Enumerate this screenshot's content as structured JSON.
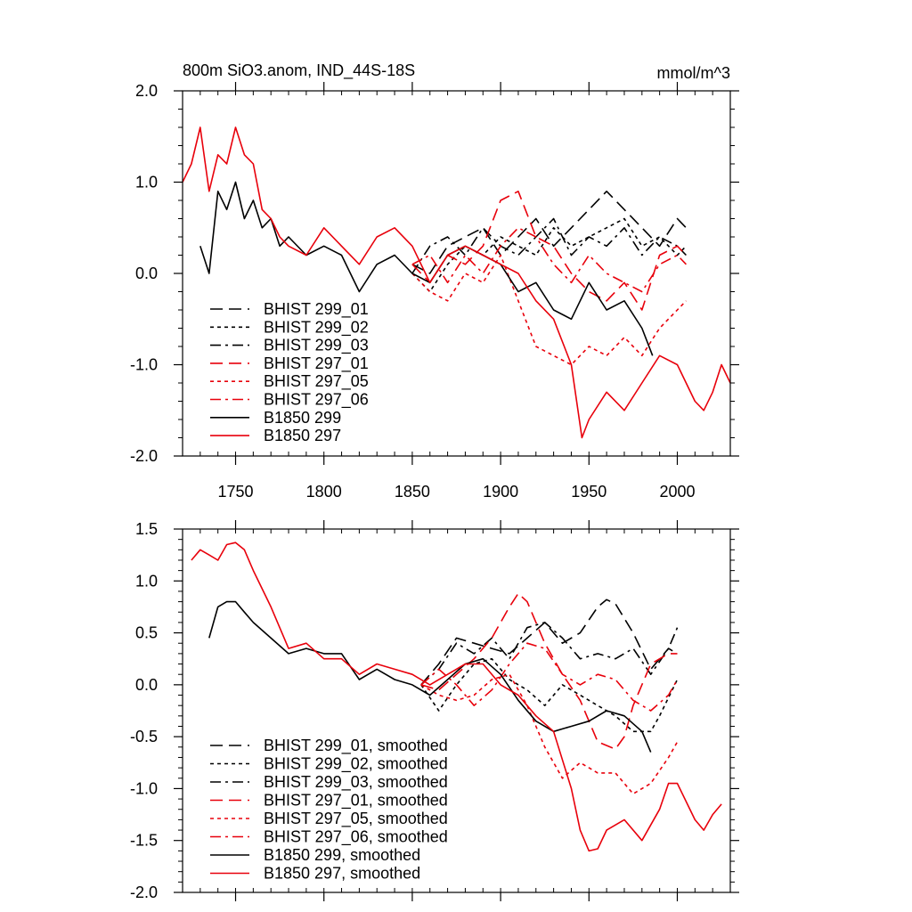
{
  "figure": {
    "title": "800m SiO3.anom, IND_44S-18S",
    "units": "mmol/m^3"
  },
  "colors": {
    "black": "#000000",
    "red": "#e8000b"
  },
  "chart_data": [
    {
      "type": "line",
      "xlim": [
        1720,
        2030
      ],
      "ylim": [
        -2.0,
        2.0
      ],
      "x_ticks": [
        1750,
        1800,
        1850,
        1900,
        1950,
        2000
      ],
      "x_tick_labels": [
        "1750",
        "1800",
        "1850",
        "1900",
        "1950",
        "2000"
      ],
      "y_ticks": [
        -2.0,
        -1.0,
        0.0,
        1.0,
        2.0
      ],
      "y_tick_labels": [
        "-2.0",
        "-1.0",
        "0.0",
        "1.0",
        "2.0"
      ],
      "legend_position": "bottom-left",
      "series": [
        {
          "name": "BHIST 299_01",
          "color": "#000000",
          "dash": "dashed",
          "x": [
            1850,
            1860,
            1870,
            1880,
            1890,
            1900,
            1910,
            1920,
            1930,
            1940,
            1950,
            1960,
            1970,
            1980,
            1990,
            2000,
            2005
          ],
          "y": [
            0.1,
            0.0,
            0.3,
            0.4,
            0.5,
            0.2,
            0.4,
            0.6,
            0.3,
            0.5,
            0.7,
            0.9,
            0.7,
            0.5,
            0.3,
            0.6,
            0.5
          ]
        },
        {
          "name": "BHIST 299_02",
          "color": "#000000",
          "dash": "dotted",
          "x": [
            1850,
            1860,
            1870,
            1880,
            1890,
            1900,
            1910,
            1920,
            1930,
            1940,
            1950,
            1960,
            1970,
            1980,
            1990,
            2000,
            2005
          ],
          "y": [
            0.0,
            -0.2,
            0.1,
            0.3,
            0.2,
            0.4,
            0.3,
            0.2,
            0.5,
            0.3,
            0.4,
            0.5,
            0.6,
            0.3,
            0.4,
            0.2,
            0.3
          ]
        },
        {
          "name": "BHIST 299_03",
          "color": "#000000",
          "dash": "dashdot",
          "x": [
            1850,
            1860,
            1870,
            1880,
            1890,
            1900,
            1910,
            1920,
            1930,
            1940,
            1950,
            1960,
            1970,
            1980,
            1990,
            2000,
            2005
          ],
          "y": [
            0.0,
            0.3,
            0.4,
            0.2,
            0.5,
            0.3,
            0.2,
            0.4,
            0.6,
            0.2,
            0.4,
            0.3,
            0.5,
            0.2,
            0.4,
            0.3,
            0.2
          ]
        },
        {
          "name": "BHIST 297_01",
          "color": "#e8000b",
          "dash": "dashed",
          "x": [
            1850,
            1860,
            1870,
            1880,
            1890,
            1900,
            1910,
            1920,
            1930,
            1940,
            1950,
            1960,
            1970,
            1980,
            1990,
            2000,
            2005
          ],
          "y": [
            0.1,
            -0.1,
            0.2,
            0.1,
            0.3,
            0.8,
            0.9,
            0.4,
            0.3,
            0.0,
            -0.2,
            -0.3,
            -0.1,
            -0.4,
            0.2,
            0.3,
            0.2
          ]
        },
        {
          "name": "BHIST 297_05",
          "color": "#e8000b",
          "dash": "dotted",
          "x": [
            1850,
            1860,
            1870,
            1880,
            1890,
            1900,
            1910,
            1920,
            1930,
            1940,
            1950,
            1960,
            1970,
            1980,
            1990,
            2000,
            2005
          ],
          "y": [
            0.0,
            -0.2,
            -0.3,
            0.0,
            -0.1,
            0.2,
            -0.3,
            -0.8,
            -0.9,
            -1.0,
            -0.8,
            -0.9,
            -0.7,
            -0.9,
            -0.6,
            -0.4,
            -0.3
          ]
        },
        {
          "name": "BHIST 297_06",
          "color": "#e8000b",
          "dash": "dashdot",
          "x": [
            1850,
            1860,
            1870,
            1880,
            1890,
            1900,
            1910,
            1920,
            1930,
            1940,
            1950,
            1960,
            1970,
            1980,
            1990,
            2000,
            2005
          ],
          "y": [
            0.1,
            0.2,
            -0.1,
            0.2,
            0.0,
            0.3,
            0.5,
            0.4,
            0.1,
            -0.1,
            0.2,
            0.0,
            -0.1,
            -0.2,
            0.1,
            0.2,
            0.1
          ]
        },
        {
          "name": "B1850 299",
          "color": "#000000",
          "dash": "solid",
          "x": [
            1730,
            1735,
            1740,
            1745,
            1750,
            1755,
            1760,
            1765,
            1770,
            1775,
            1780,
            1790,
            1800,
            1810,
            1820,
            1830,
            1840,
            1850,
            1860,
            1870,
            1880,
            1890,
            1900,
            1910,
            1920,
            1930,
            1940,
            1950,
            1960,
            1970,
            1980,
            1986
          ],
          "y": [
            0.3,
            0.0,
            0.9,
            0.7,
            1.0,
            0.6,
            0.8,
            0.5,
            0.6,
            0.3,
            0.4,
            0.2,
            0.3,
            0.2,
            -0.2,
            0.1,
            0.2,
            0.0,
            -0.1,
            0.2,
            0.3,
            0.2,
            0.1,
            -0.2,
            -0.1,
            -0.4,
            -0.5,
            -0.1,
            -0.4,
            -0.3,
            -0.6,
            -0.9
          ]
        },
        {
          "name": "B1850 297",
          "color": "#e8000b",
          "dash": "solid",
          "x": [
            1720,
            1725,
            1730,
            1735,
            1740,
            1745,
            1750,
            1755,
            1760,
            1765,
            1770,
            1775,
            1780,
            1790,
            1800,
            1810,
            1820,
            1830,
            1840,
            1850,
            1860,
            1870,
            1880,
            1890,
            1900,
            1910,
            1920,
            1930,
            1940,
            1946,
            1950,
            1960,
            1970,
            1980,
            1990,
            2000,
            2010,
            2015,
            2020,
            2025,
            2030
          ],
          "y": [
            1.0,
            1.2,
            1.6,
            0.9,
            1.3,
            1.2,
            1.6,
            1.3,
            1.2,
            0.7,
            0.6,
            0.4,
            0.3,
            0.2,
            0.5,
            0.3,
            0.1,
            0.4,
            0.5,
            0.3,
            -0.1,
            0.2,
            0.3,
            0.2,
            0.1,
            0.0,
            -0.3,
            -0.5,
            -1.0,
            -1.8,
            -1.6,
            -1.3,
            -1.5,
            -1.2,
            -0.9,
            -1.0,
            -1.4,
            -1.5,
            -1.3,
            -1.0,
            -1.2
          ]
        }
      ]
    },
    {
      "type": "line",
      "xlim": [
        1720,
        2030
      ],
      "ylim": [
        -2.0,
        1.5
      ],
      "x_ticks": [
        1750,
        1800,
        1850,
        1900,
        1950,
        2000
      ],
      "y_ticks": [
        -2.0,
        -1.5,
        -1.0,
        -0.5,
        0.0,
        0.5,
        1.0,
        1.5
      ],
      "y_tick_labels": [
        "-2.0",
        "-1.5",
        "-1.0",
        "-0.5",
        "0.0",
        "0.5",
        "1.0",
        "1.5"
      ],
      "legend_position": "bottom-left",
      "series": [
        {
          "name": "BHIST 299_01, smoothed",
          "color": "#000000",
          "dash": "dashed",
          "x": [
            1855,
            1865,
            1875,
            1885,
            1895,
            1905,
            1915,
            1925,
            1935,
            1945,
            1955,
            1960,
            1965,
            1975,
            1985,
            1995,
            2000
          ],
          "y": [
            0.0,
            0.2,
            0.45,
            0.4,
            0.35,
            0.3,
            0.45,
            0.6,
            0.4,
            0.5,
            0.75,
            0.82,
            0.78,
            0.5,
            0.15,
            0.35,
            0.3
          ]
        },
        {
          "name": "BHIST 299_02, smoothed",
          "color": "#000000",
          "dash": "dotted",
          "x": [
            1855,
            1865,
            1875,
            1885,
            1895,
            1905,
            1915,
            1925,
            1935,
            1945,
            1955,
            1965,
            1975,
            1985,
            1990,
            2000
          ],
          "y": [
            0.0,
            -0.25,
            0.0,
            0.2,
            0.25,
            0.05,
            -0.05,
            -0.2,
            0.0,
            -0.1,
            -0.2,
            -0.3,
            -0.45,
            -0.45,
            -0.3,
            0.05
          ]
        },
        {
          "name": "BHIST 299_03, smoothed",
          "color": "#000000",
          "dash": "dashdot",
          "x": [
            1855,
            1865,
            1875,
            1885,
            1895,
            1905,
            1915,
            1925,
            1935,
            1945,
            1955,
            1965,
            1975,
            1985,
            1995,
            2000
          ],
          "y": [
            0.0,
            0.15,
            0.4,
            0.3,
            0.45,
            0.25,
            0.55,
            0.6,
            0.45,
            0.25,
            0.3,
            0.25,
            0.35,
            0.1,
            0.35,
            0.55
          ]
        },
        {
          "name": "BHIST 297_01, smoothed",
          "color": "#e8000b",
          "dash": "dashed",
          "x": [
            1855,
            1865,
            1875,
            1885,
            1895,
            1905,
            1910,
            1915,
            1925,
            1935,
            1945,
            1955,
            1965,
            1970,
            1975,
            1985,
            1995,
            2000
          ],
          "y": [
            0.0,
            -0.05,
            0.1,
            0.25,
            0.45,
            0.75,
            0.88,
            0.8,
            0.4,
            0.1,
            -0.15,
            -0.55,
            -0.62,
            -0.5,
            -0.2,
            0.2,
            0.3,
            0.3
          ]
        },
        {
          "name": "BHIST 297_05, smoothed",
          "color": "#e8000b",
          "dash": "dotted",
          "x": [
            1855,
            1865,
            1875,
            1885,
            1895,
            1905,
            1915,
            1925,
            1935,
            1945,
            1955,
            1965,
            1975,
            1985,
            1995,
            2000
          ],
          "y": [
            0.0,
            -0.1,
            -0.15,
            -0.1,
            0.05,
            0.1,
            -0.2,
            -0.6,
            -0.9,
            -0.75,
            -0.85,
            -0.85,
            -1.05,
            -0.95,
            -0.7,
            -0.55
          ]
        },
        {
          "name": "BHIST 297_06, smoothed",
          "color": "#e8000b",
          "dash": "dashdot",
          "x": [
            1855,
            1865,
            1875,
            1885,
            1895,
            1905,
            1915,
            1925,
            1935,
            1945,
            1955,
            1965,
            1975,
            1985,
            1995,
            2000
          ],
          "y": [
            0.0,
            0.15,
            0.0,
            -0.2,
            -0.05,
            0.2,
            0.4,
            0.35,
            0.1,
            0.0,
            0.1,
            0.05,
            -0.15,
            -0.25,
            -0.1,
            0.05
          ]
        },
        {
          "name": "B1850 299, smoothed",
          "color": "#000000",
          "dash": "solid",
          "x": [
            1735,
            1740,
            1745,
            1750,
            1755,
            1760,
            1770,
            1780,
            1790,
            1800,
            1810,
            1820,
            1830,
            1840,
            1850,
            1860,
            1870,
            1880,
            1890,
            1900,
            1910,
            1920,
            1930,
            1940,
            1950,
            1960,
            1970,
            1980,
            1985
          ],
          "y": [
            0.45,
            0.75,
            0.8,
            0.8,
            0.7,
            0.6,
            0.45,
            0.3,
            0.35,
            0.3,
            0.3,
            0.05,
            0.15,
            0.05,
            0.0,
            -0.1,
            0.05,
            0.2,
            0.25,
            0.1,
            -0.15,
            -0.35,
            -0.45,
            -0.4,
            -0.35,
            -0.25,
            -0.3,
            -0.45,
            -0.65
          ]
        },
        {
          "name": "B1850 297, smoothed",
          "color": "#e8000b",
          "dash": "solid",
          "x": [
            1725,
            1730,
            1735,
            1740,
            1745,
            1750,
            1755,
            1760,
            1770,
            1780,
            1790,
            1800,
            1810,
            1820,
            1830,
            1840,
            1850,
            1860,
            1870,
            1880,
            1890,
            1900,
            1910,
            1920,
            1930,
            1940,
            1945,
            1950,
            1955,
            1960,
            1970,
            1980,
            1990,
            1995,
            2000,
            2010,
            2015,
            2020,
            2025
          ],
          "y": [
            1.2,
            1.3,
            1.25,
            1.2,
            1.35,
            1.37,
            1.3,
            1.1,
            0.75,
            0.35,
            0.4,
            0.25,
            0.25,
            0.1,
            0.2,
            0.15,
            0.1,
            0.0,
            0.1,
            0.2,
            0.2,
            0.0,
            -0.1,
            -0.3,
            -0.45,
            -1.0,
            -1.4,
            -1.6,
            -1.58,
            -1.4,
            -1.3,
            -1.5,
            -1.2,
            -0.95,
            -0.95,
            -1.3,
            -1.4,
            -1.25,
            -1.15
          ]
        }
      ]
    }
  ]
}
